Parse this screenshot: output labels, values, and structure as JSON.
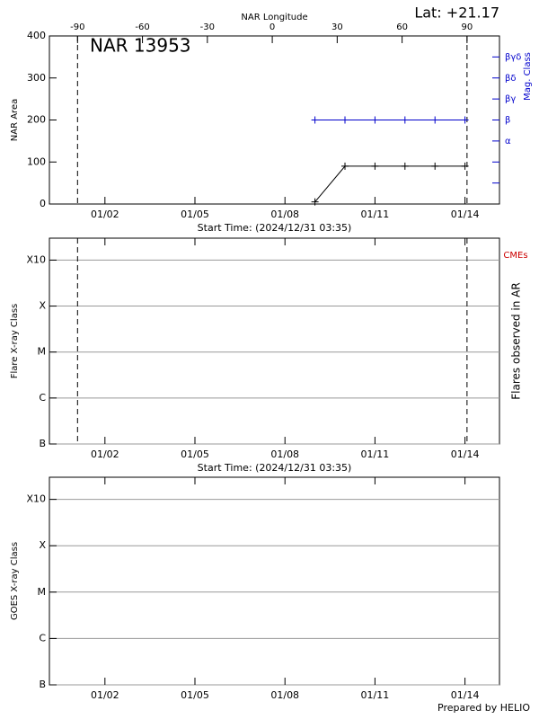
{
  "lat_label": "Lat: +21.17",
  "footer": "Prepared by HELIO",
  "chart_data": [
    {
      "type": "line",
      "annotation": "NAR 13953",
      "ylabel": "NAR Area",
      "y2label": "Mag. Class",
      "y2color": "#0000cc",
      "xlabel": "Start Time: (2024/12/31 03:35)",
      "xlim": [
        "12/31 03:35",
        "01/15 03:35"
      ],
      "xticks": [
        "01/02",
        "01/05",
        "01/08",
        "01/11",
        "01/14"
      ],
      "x2label": "NAR Longitude",
      "x2lim": [
        -103,
        105
      ],
      "x2ticks": [
        -90,
        -60,
        -30,
        0,
        30,
        60,
        90
      ],
      "limb_longitudes": [
        -90,
        90
      ],
      "ylim": [
        0,
        400
      ],
      "yticks": [
        0,
        100,
        200,
        300,
        400
      ],
      "y2lim": [
        -2,
        6
      ],
      "y2ticks": [
        {
          "value": -1,
          "label": null
        },
        {
          "value": 0,
          "label": null
        },
        {
          "value": 1,
          "label": "α"
        },
        {
          "value": 2,
          "label": "β"
        },
        {
          "value": 3,
          "label": "βγ"
        },
        {
          "value": 4,
          "label": "βδ"
        },
        {
          "value": 5,
          "label": "βγδ"
        }
      ],
      "x": [
        "01/09",
        "01/10",
        "01/11",
        "01/12",
        "01/13",
        "01/14"
      ],
      "series": [
        {
          "color": "#000000",
          "values": [
            5,
            90,
            90,
            90,
            90,
            90
          ]
        },
        {
          "color": "#0000cc",
          "axis": "y2",
          "values": [
            2,
            2,
            2,
            2,
            2,
            2
          ]
        }
      ]
    },
    {
      "type": "flare",
      "ylabel": "Flare X-ray Class",
      "y2label": "Flares observed in AR",
      "cme_label": "CMEs",
      "cme_color": "#cc0000",
      "xlabel": "Start Time: (2024/12/31 03:35)",
      "xlim": [
        "12/31 03:35",
        "01/15 03:35"
      ],
      "xticks": [
        "01/02",
        "01/05",
        "01/08",
        "01/11",
        "01/14"
      ],
      "limb_lines": true,
      "log": true,
      "grid": true,
      "ylim": [
        1e-07,
        0.003
      ],
      "yticks": [
        {
          "value": 1e-07,
          "label": "B"
        },
        {
          "value": 1e-06,
          "label": "C"
        },
        {
          "value": 1e-05,
          "label": "M"
        },
        {
          "value": 0.0001,
          "label": "X"
        },
        {
          "value": 0.001,
          "label": "X10"
        }
      ]
    },
    {
      "type": "flare",
      "ylabel": "GOES X-ray Class",
      "xlim": [
        "12/31 03:35",
        "01/15 03:35"
      ],
      "xticks": [
        "01/02",
        "01/05",
        "01/08",
        "01/11",
        "01/14"
      ],
      "log": true,
      "grid": true,
      "ylim": [
        1e-07,
        0.003
      ],
      "yticks": [
        {
          "value": 1e-07,
          "label": "B"
        },
        {
          "value": 1e-06,
          "label": "C"
        },
        {
          "value": 1e-05,
          "label": "M"
        },
        {
          "value": 0.0001,
          "label": "X"
        },
        {
          "value": 0.001,
          "label": "X10"
        }
      ]
    }
  ]
}
